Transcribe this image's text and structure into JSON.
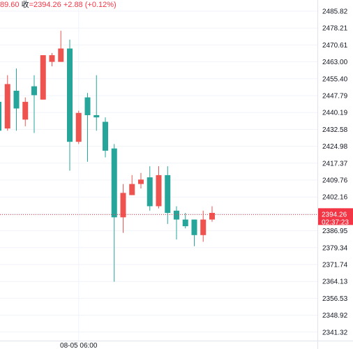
{
  "legend": {
    "open_value": "89.60",
    "close_label": "收",
    "close_value": "=2394.26",
    "change": "+2.88 (+0.12%)"
  },
  "colors": {
    "up": "#ef5350",
    "down": "#26a69a",
    "grid": "#f0f3fa",
    "axis_border": "#e0e3eb",
    "price_line": "#f23645"
  },
  "chart_data": {
    "type": "candlestick",
    "y_ticks": [
      "2485.82",
      "2478.21",
      "2470.61",
      "2463.00",
      "2455.40",
      "2447.79",
      "2440.19",
      "2432.58",
      "2424.98",
      "2417.37",
      "2409.76",
      "2402.16",
      "2394.55",
      "2386.95",
      "2379.34",
      "2371.74",
      "2364.13",
      "2356.53",
      "2348.92",
      "2341.32"
    ],
    "ylim": [
      2339.0,
      2488.0
    ],
    "x_ticks": [
      {
        "index": 9,
        "label": "08-05 06:00"
      }
    ],
    "current_price": "2394.26",
    "countdown": "02:37:23",
    "candles": [
      {
        "o": 2445.0,
        "h": 2452.0,
        "l": 2430.0,
        "c": 2432.0
      },
      {
        "o": 2433.0,
        "h": 2457.0,
        "l": 2432.0,
        "c": 2453.0
      },
      {
        "o": 2450.0,
        "h": 2460.0,
        "l": 2432.0,
        "c": 2442.0
      },
      {
        "o": 2437.0,
        "h": 2447.0,
        "l": 2434.0,
        "c": 2445.0
      },
      {
        "o": 2452.0,
        "h": 2457.0,
        "l": 2431.0,
        "c": 2448.0
      },
      {
        "o": 2446.0,
        "h": 2466.0,
        "l": 2446.0,
        "c": 2466.0
      },
      {
        "o": 2463.0,
        "h": 2467.0,
        "l": 2461.0,
        "c": 2466.0
      },
      {
        "o": 2463.0,
        "h": 2477.0,
        "l": 2463.0,
        "c": 2469.0
      },
      {
        "o": 2469.0,
        "h": 2473.0,
        "l": 2414.0,
        "c": 2427.0
      },
      {
        "o": 2427.0,
        "h": 2441.0,
        "l": 2426.0,
        "c": 2440.0
      },
      {
        "o": 2447.0,
        "h": 2449.0,
        "l": 2418.0,
        "c": 2439.0
      },
      {
        "o": 2439.0,
        "h": 2457.0,
        "l": 2432.0,
        "c": 2438.0
      },
      {
        "o": 2436.0,
        "h": 2438.0,
        "l": 2420.0,
        "c": 2423.0
      },
      {
        "o": 2424.0,
        "h": 2426.0,
        "l": 2364.0,
        "c": 2393.0
      },
      {
        "o": 2393.0,
        "h": 2408.0,
        "l": 2386.0,
        "c": 2404.0
      },
      {
        "o": 2403.0,
        "h": 2412.0,
        "l": 2403.0,
        "c": 2408.0
      },
      {
        "o": 2408.0,
        "h": 2413.0,
        "l": 2406.0,
        "c": 2410.0
      },
      {
        "o": 2411.0,
        "h": 2416.0,
        "l": 2396.0,
        "c": 2398.0
      },
      {
        "o": 2398.0,
        "h": 2416.0,
        "l": 2397.0,
        "c": 2412.0
      },
      {
        "o": 2412.0,
        "h": 2416.0,
        "l": 2390.0,
        "c": 2395.0
      },
      {
        "o": 2396.0,
        "h": 2398.0,
        "l": 2383.0,
        "c": 2392.0
      },
      {
        "o": 2392.0,
        "h": 2395.0,
        "l": 2388.0,
        "c": 2389.0
      },
      {
        "o": 2392.0,
        "h": 2392.0,
        "l": 2380.0,
        "c": 2385.0
      },
      {
        "o": 2385.0,
        "h": 2396.0,
        "l": 2382.0,
        "c": 2392.0
      },
      {
        "o": 2392.0,
        "h": 2398.0,
        "l": 2391.0,
        "c": 2395.0
      }
    ]
  }
}
